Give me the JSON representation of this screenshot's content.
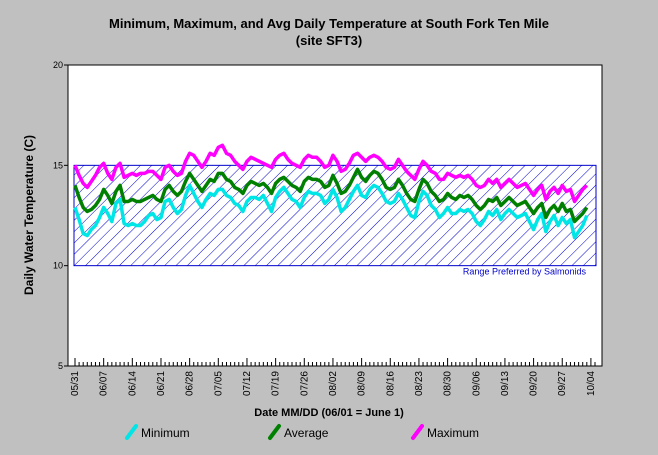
{
  "chart_data": {
    "type": "line",
    "title_line1": "Minimum, Maximum, and Avg Daily Temperature at South Fork Ten Mile",
    "title_line2": "(site SFT3)",
    "xlabel": "Date MM/DD (06/01 = June 1)",
    "ylabel": "Daily Water Temperature (C)",
    "ylim": [
      5,
      20
    ],
    "yticks": [
      5,
      10,
      15,
      20
    ],
    "xlim": [
      0,
      127
    ],
    "xticks": [
      {
        "day": 0,
        "label": "05/31"
      },
      {
        "day": 7,
        "label": "06/07"
      },
      {
        "day": 14,
        "label": "06/14"
      },
      {
        "day": 21,
        "label": "06/21"
      },
      {
        "day": 28,
        "label": "06/28"
      },
      {
        "day": 35,
        "label": "07/05"
      },
      {
        "day": 42,
        "label": "07/12"
      },
      {
        "day": 49,
        "label": "07/19"
      },
      {
        "day": 56,
        "label": "07/26"
      },
      {
        "day": 63,
        "label": "08/02"
      },
      {
        "day": 70,
        "label": "08/09"
      },
      {
        "day": 77,
        "label": "08/16"
      },
      {
        "day": 84,
        "label": "08/23"
      },
      {
        "day": 91,
        "label": "08/30"
      },
      {
        "day": 98,
        "label": "09/06"
      },
      {
        "day": 105,
        "label": "09/13"
      },
      {
        "day": 112,
        "label": "09/20"
      },
      {
        "day": 119,
        "label": "09/27"
      },
      {
        "day": 126,
        "label": "10/04"
      }
    ],
    "range_band": {
      "low": 10,
      "high": 15,
      "label": "Range Preferred by Salmonids",
      "color": "#0000cc"
    },
    "series": [
      {
        "name": "Minimum",
        "color": "#00e5e5",
        "values": [
          12.9,
          12.3,
          11.6,
          11.5,
          11.8,
          12.0,
          12.4,
          12.9,
          12.6,
          12.2,
          13.1,
          13.3,
          12.1,
          12.0,
          12.1,
          12.0,
          12.0,
          12.2,
          12.5,
          12.6,
          12.3,
          12.4,
          13.2,
          13.3,
          12.9,
          12.6,
          12.8,
          13.5,
          14.0,
          13.6,
          13.2,
          12.9,
          13.3,
          13.6,
          13.5,
          13.8,
          13.8,
          13.5,
          13.4,
          13.1,
          13.0,
          12.7,
          13.2,
          13.4,
          13.4,
          13.3,
          13.5,
          13.1,
          12.7,
          13.4,
          13.7,
          13.9,
          13.6,
          13.3,
          13.2,
          12.9,
          13.4,
          13.7,
          13.6,
          13.6,
          13.5,
          13.1,
          13.3,
          13.8,
          13.4,
          12.7,
          12.9,
          13.3,
          13.7,
          14.0,
          13.5,
          13.4,
          13.8,
          14.0,
          13.9,
          13.6,
          13.2,
          13.1,
          13.2,
          13.6,
          13.3,
          12.9,
          12.5,
          12.4,
          13.2,
          13.7,
          13.5,
          13.0,
          12.8,
          12.4,
          12.6,
          12.9,
          12.6,
          12.6,
          12.8,
          12.7,
          12.8,
          12.6,
          12.2,
          12.0,
          12.3,
          12.7,
          12.5,
          12.8,
          12.3,
          12.6,
          12.8,
          12.6,
          12.4,
          12.5,
          12.6,
          12.2,
          11.8,
          12.3,
          12.6,
          11.7,
          12.2,
          12.5,
          12.0,
          12.4,
          12.1,
          12.3,
          11.4,
          11.7,
          12.0,
          12.5
        ],
        "show_every": 1
      },
      {
        "name": "Average",
        "color": "#008000",
        "values": [
          14.0,
          13.4,
          12.9,
          12.7,
          12.8,
          13.0,
          13.3,
          13.8,
          13.5,
          13.1,
          13.7,
          14.0,
          13.2,
          13.2,
          13.3,
          13.2,
          13.2,
          13.3,
          13.4,
          13.5,
          13.3,
          13.2,
          13.8,
          14.0,
          13.7,
          13.5,
          13.7,
          14.2,
          14.6,
          14.3,
          14.0,
          13.7,
          14.0,
          14.3,
          14.2,
          14.6,
          14.6,
          14.3,
          14.2,
          13.9,
          13.8,
          13.6,
          14.0,
          14.2,
          14.1,
          14.0,
          14.1,
          13.9,
          13.6,
          14.1,
          14.3,
          14.4,
          14.2,
          14.0,
          13.9,
          13.7,
          14.2,
          14.4,
          14.3,
          14.3,
          14.2,
          13.9,
          14.0,
          14.5,
          14.1,
          13.6,
          13.7,
          14.0,
          14.4,
          14.8,
          14.4,
          14.2,
          14.5,
          14.7,
          14.6,
          14.3,
          13.9,
          13.8,
          13.9,
          14.3,
          14.0,
          13.6,
          13.3,
          13.2,
          13.8,
          14.3,
          14.1,
          13.7,
          13.5,
          13.2,
          13.3,
          13.6,
          13.4,
          13.3,
          13.5,
          13.4,
          13.5,
          13.3,
          13.0,
          12.8,
          13.0,
          13.3,
          13.2,
          13.4,
          13.0,
          13.2,
          13.4,
          13.2,
          13.0,
          13.1,
          13.2,
          12.9,
          12.6,
          12.9,
          13.1,
          12.4,
          12.8,
          13.0,
          12.7,
          13.1,
          12.7,
          12.8,
          12.2,
          12.4,
          12.6,
          12.9
        ],
        "show_every": 1
      },
      {
        "name": "Maximum",
        "color": "#ff00ff",
        "values": [
          15.0,
          14.5,
          14.1,
          13.9,
          14.2,
          14.5,
          14.9,
          15.1,
          14.6,
          14.3,
          14.9,
          15.1,
          14.4,
          14.5,
          14.6,
          14.5,
          14.6,
          14.6,
          14.7,
          14.7,
          14.5,
          14.3,
          14.9,
          15.0,
          14.7,
          14.5,
          14.6,
          15.2,
          15.6,
          15.5,
          15.2,
          14.9,
          15.2,
          15.6,
          15.5,
          15.9,
          16.0,
          15.6,
          15.5,
          15.2,
          15.0,
          14.8,
          15.2,
          15.4,
          15.3,
          15.2,
          15.1,
          15.0,
          14.9,
          15.3,
          15.5,
          15.6,
          15.3,
          15.1,
          15.0,
          14.9,
          15.3,
          15.5,
          15.4,
          15.4,
          15.2,
          14.9,
          15.0,
          15.5,
          15.2,
          14.7,
          14.8,
          15.1,
          15.5,
          15.6,
          15.4,
          15.2,
          15.4,
          15.5,
          15.4,
          15.2,
          14.9,
          14.8,
          14.9,
          15.3,
          15.0,
          14.7,
          14.5,
          14.3,
          14.8,
          15.2,
          15.0,
          14.7,
          14.6,
          14.3,
          14.3,
          14.6,
          14.5,
          14.4,
          14.5,
          14.4,
          14.5,
          14.3,
          14.0,
          13.9,
          14.0,
          14.3,
          14.1,
          14.3,
          13.9,
          14.1,
          14.3,
          14.1,
          13.9,
          14.0,
          14.1,
          13.8,
          13.5,
          13.8,
          14.0,
          13.3,
          13.7,
          13.9,
          13.6,
          14.0,
          13.7,
          13.8,
          13.2,
          13.5,
          13.8,
          14.0
        ],
        "show_every": 1
      }
    ],
    "grid": false,
    "legend_position": "bottom"
  }
}
